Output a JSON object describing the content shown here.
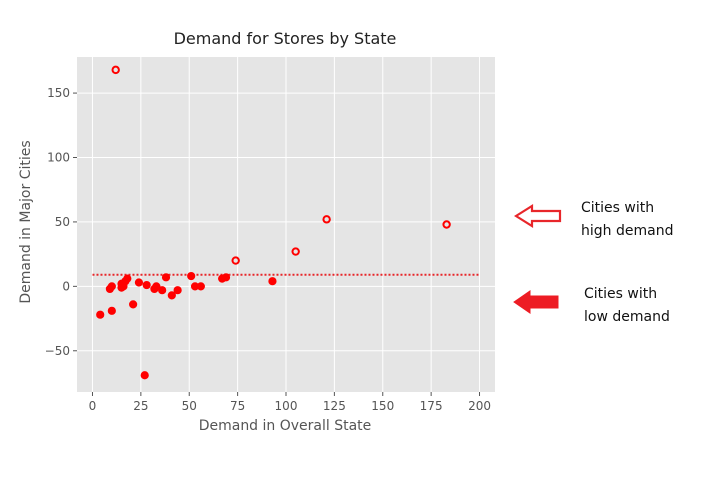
{
  "chart_data": {
    "type": "scatter",
    "title": "Demand for Stores by State",
    "xlabel": "Demand in Overall State",
    "ylabel": "Demand in Major Cities",
    "xlim": [
      -8,
      208
    ],
    "ylim": [
      -82,
      178
    ],
    "xticks": [
      0,
      25,
      50,
      75,
      100,
      125,
      150,
      175,
      200
    ],
    "xtick_labels": [
      "0",
      "25",
      "50",
      "75",
      "100",
      "125",
      "150",
      "175",
      "200"
    ],
    "yticks": [
      -50,
      0,
      50,
      100,
      150
    ],
    "ytick_labels": [
      "−50",
      "0",
      "50",
      "100",
      "150"
    ],
    "grid": true,
    "background": "#e5e5e5",
    "grid_color": "#ffffff",
    "marker_color": "#ff0000",
    "reference_line": {
      "y": 9,
      "style": "dotted",
      "color": "#e8262a"
    },
    "series": [
      {
        "marker": "hollow-circle",
        "points": [
          {
            "x": 12,
            "y": 168
          },
          {
            "x": 74,
            "y": 20
          },
          {
            "x": 105,
            "y": 27
          },
          {
            "x": 121,
            "y": 52
          },
          {
            "x": 183,
            "y": 48
          }
        ]
      },
      {
        "marker": "filled-circle",
        "points": [
          {
            "x": 4,
            "y": -22
          },
          {
            "x": 9,
            "y": -2
          },
          {
            "x": 10,
            "y": 0
          },
          {
            "x": 10,
            "y": -19
          },
          {
            "x": 15,
            "y": 2
          },
          {
            "x": 15,
            "y": -1
          },
          {
            "x": 16,
            "y": 0
          },
          {
            "x": 17,
            "y": 4
          },
          {
            "x": 18,
            "y": 6
          },
          {
            "x": 21,
            "y": -14
          },
          {
            "x": 24,
            "y": 3
          },
          {
            "x": 27,
            "y": -69
          },
          {
            "x": 28,
            "y": 1
          },
          {
            "x": 32,
            "y": -2
          },
          {
            "x": 33,
            "y": 0
          },
          {
            "x": 36,
            "y": -3
          },
          {
            "x": 38,
            "y": 7
          },
          {
            "x": 41,
            "y": -7
          },
          {
            "x": 44,
            "y": -3
          },
          {
            "x": 51,
            "y": 8
          },
          {
            "x": 53,
            "y": 0
          },
          {
            "x": 56,
            "y": 0
          },
          {
            "x": 67,
            "y": 6
          },
          {
            "x": 69,
            "y": 7
          },
          {
            "x": 93,
            "y": 4
          }
        ]
      }
    ],
    "annotations": [
      {
        "text": "Cities with\nhigh demand",
        "arrow": "hollow-left"
      },
      {
        "text": "Cities with\nlow demand",
        "arrow": "filled-left"
      }
    ]
  }
}
